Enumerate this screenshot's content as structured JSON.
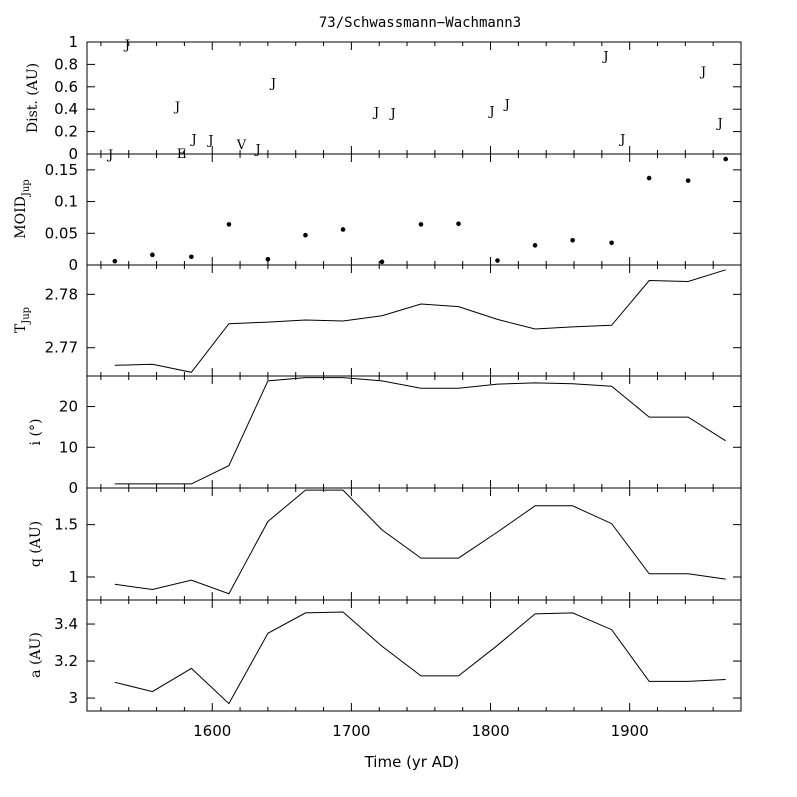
{
  "chart_data": {
    "type": "line",
    "title": "73/Schwassmann−Wachmann3",
    "xlabel": "Time (yr AD)",
    "xlim": [
      1510,
      1980
    ],
    "xticks": [
      1600,
      1700,
      1800,
      1900
    ],
    "panels": [
      {
        "key": "dist",
        "type": "scatter",
        "ylabel": "Dist. (AU)",
        "ylim": [
          0,
          1
        ],
        "yticks": [
          0,
          0.2,
          0.4,
          0.6,
          0.8,
          1
        ],
        "ytick_labels": [
          "0",
          "0.2",
          "0.4",
          "0.6",
          "0.8",
          "1"
        ],
        "points": [
          {
            "x": 1527,
            "y": 0.0,
            "label": "J"
          },
          {
            "x": 1539,
            "y": 0.98,
            "label": "J"
          },
          {
            "x": 1575,
            "y": 0.43,
            "label": "J"
          },
          {
            "x": 1578,
            "y": 0.01,
            "label": "E"
          },
          {
            "x": 1587,
            "y": 0.14,
            "label": "J"
          },
          {
            "x": 1599,
            "y": 0.13,
            "label": "J"
          },
          {
            "x": 1621,
            "y": 0.09,
            "label": "V"
          },
          {
            "x": 1633,
            "y": 0.05,
            "label": "J"
          },
          {
            "x": 1644,
            "y": 0.64,
            "label": "J"
          },
          {
            "x": 1718,
            "y": 0.38,
            "label": "J"
          },
          {
            "x": 1730,
            "y": 0.37,
            "label": "J"
          },
          {
            "x": 1801,
            "y": 0.39,
            "label": "J"
          },
          {
            "x": 1812,
            "y": 0.45,
            "label": "J"
          },
          {
            "x": 1883,
            "y": 0.88,
            "label": "J"
          },
          {
            "x": 1895,
            "y": 0.14,
            "label": "J"
          },
          {
            "x": 1953,
            "y": 0.74,
            "label": "J"
          },
          {
            "x": 1965,
            "y": 0.28,
            "label": "J"
          }
        ]
      },
      {
        "key": "moid",
        "type": "scatter",
        "ylabel": "MOID",
        "ylabel_sub": "Jup",
        "ylim": [
          0,
          0.175
        ],
        "yticks": [
          0,
          0.05,
          0.1,
          0.15
        ],
        "ytick_labels": [
          "0",
          "0.05",
          "0.1",
          "0.15"
        ],
        "x": [
          1530,
          1557,
          1585,
          1612,
          1640,
          1667,
          1694,
          1722,
          1750,
          1777,
          1805,
          1832,
          1859,
          1887,
          1914,
          1942,
          1969
        ],
        "y": [
          0.006,
          0.016,
          0.013,
          0.064,
          0.009,
          0.047,
          0.056,
          0.005,
          0.064,
          0.065,
          0.007,
          0.031,
          0.039,
          0.035,
          0.137,
          0.133,
          0.167
        ]
      },
      {
        "key": "tjup",
        "type": "line",
        "ylabel": "T",
        "ylabel_sub": "Jup",
        "ylim": [
          2.7647,
          2.7855
        ],
        "yticks": [
          2.77,
          2.78
        ],
        "ytick_labels": [
          "2.77",
          "2.78"
        ],
        "x": [
          1530,
          1557,
          1585,
          1612,
          1640,
          1667,
          1694,
          1722,
          1750,
          1777,
          1805,
          1832,
          1859,
          1887,
          1914,
          1942,
          1969
        ],
        "y": [
          2.7667,
          2.7669,
          2.7654,
          2.7745,
          2.7748,
          2.7752,
          2.775,
          2.776,
          2.7782,
          2.7777,
          2.7753,
          2.7735,
          2.7739,
          2.7742,
          2.7826,
          2.7824,
          2.7846
        ]
      },
      {
        "key": "incl",
        "type": "line",
        "ylabel": "i (°)",
        "ylim": [
          0,
          27.5
        ],
        "yticks": [
          0,
          10,
          20
        ],
        "ytick_labels": [
          "0",
          "10",
          "20"
        ],
        "x": [
          1530,
          1557,
          1585,
          1612,
          1640,
          1667,
          1694,
          1722,
          1750,
          1777,
          1805,
          1832,
          1859,
          1887,
          1914,
          1942,
          1969
        ],
        "y": [
          1.0,
          1.0,
          1.0,
          5.5,
          26.3,
          27.1,
          27.1,
          26.3,
          24.5,
          24.5,
          25.5,
          25.8,
          25.6,
          25.0,
          17.4,
          17.4,
          11.6
        ]
      },
      {
        "key": "q",
        "type": "line",
        "ylabel": "q (AU)",
        "ylim": [
          0.78,
          1.85
        ],
        "yticks": [
          1,
          1.5
        ],
        "ytick_labels": [
          "1",
          "1.5"
        ],
        "x": [
          1530,
          1557,
          1585,
          1612,
          1640,
          1667,
          1694,
          1722,
          1750,
          1777,
          1805,
          1832,
          1859,
          1887,
          1914,
          1942,
          1969
        ],
        "y": [
          0.93,
          0.88,
          0.97,
          0.84,
          1.53,
          1.83,
          1.83,
          1.45,
          1.18,
          1.18,
          1.43,
          1.68,
          1.68,
          1.51,
          1.03,
          1.03,
          0.98
        ]
      },
      {
        "key": "a",
        "type": "line",
        "ylabel": "a (AU)",
        "ylim": [
          2.93,
          3.53
        ],
        "yticks": [
          3,
          3.2,
          3.4
        ],
        "ytick_labels": [
          "3",
          "3.2",
          "3.4"
        ],
        "x": [
          1530,
          1557,
          1585,
          1612,
          1640,
          1667,
          1694,
          1722,
          1750,
          1777,
          1805,
          1832,
          1859,
          1887,
          1914,
          1942,
          1969
        ],
        "y": [
          3.085,
          3.035,
          3.16,
          2.97,
          3.35,
          3.46,
          3.465,
          3.28,
          3.12,
          3.12,
          3.285,
          3.455,
          3.46,
          3.37,
          3.09,
          3.09,
          3.1
        ]
      }
    ]
  }
}
